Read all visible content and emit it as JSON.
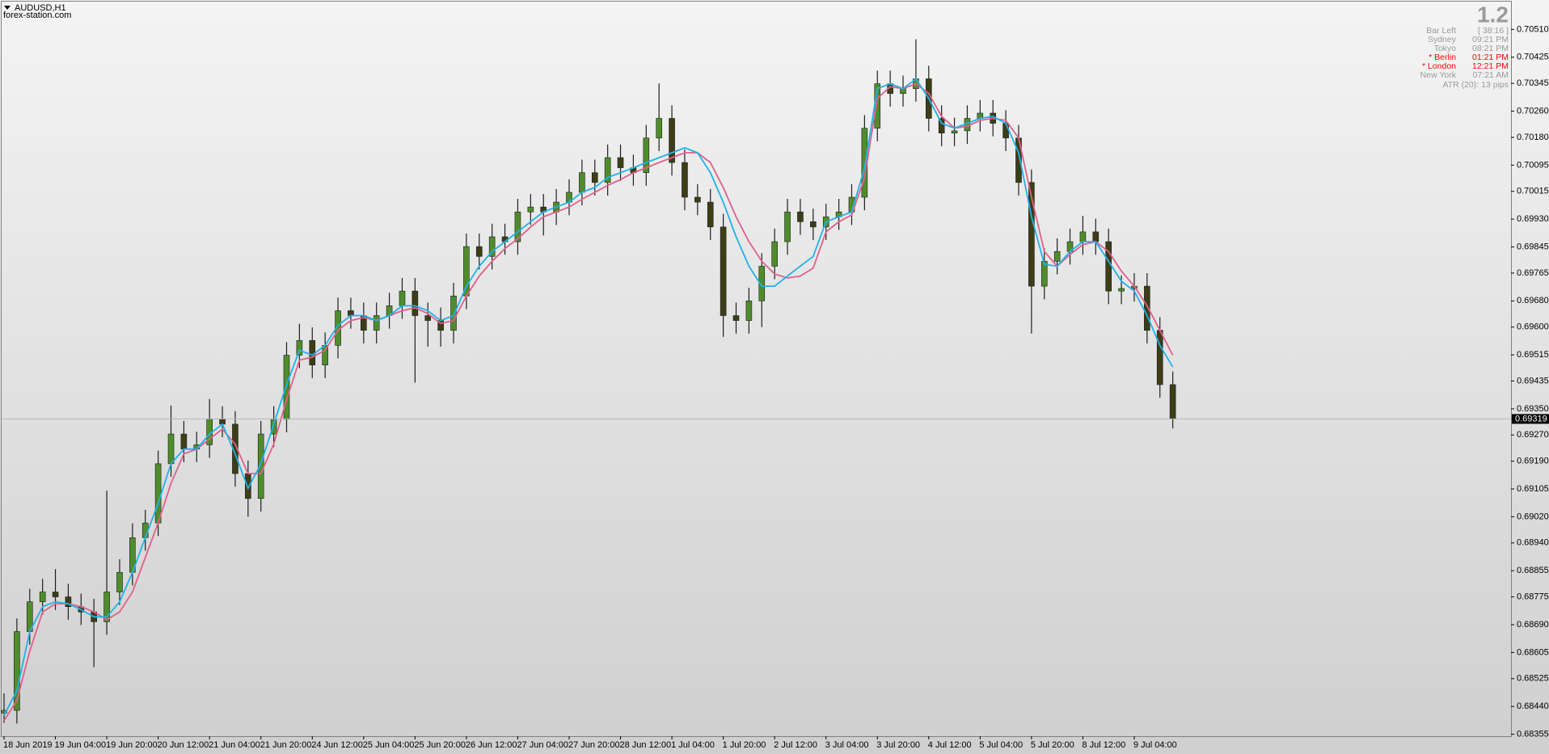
{
  "chart_data": {
    "type": "candlestick",
    "title": "AUDUSD,H1",
    "subtitle": "forex-station.com",
    "categories": [
      "18 Jun 2019",
      null,
      null,
      null,
      "19 Jun 04:00",
      null,
      null,
      null,
      "19 Jun 20:00",
      null,
      null,
      null,
      "20 Jun 12:00",
      null,
      null,
      null,
      "21 Jun 04:00",
      null,
      null,
      null,
      "21 Jun 20:00",
      null,
      null,
      null,
      "24 Jun 12:00",
      null,
      null,
      null,
      "25 Jun 04:00",
      null,
      null,
      null,
      "25 Jun 20:00",
      null,
      null,
      null,
      "26 Jun 12:00",
      null,
      null,
      null,
      "27 Jun 04:00",
      null,
      null,
      null,
      "27 Jun 20:00",
      null,
      null,
      null,
      "28 Jun 12:00",
      null,
      null,
      null,
      "1 Jul 04:00",
      null,
      null,
      null,
      "1 Jul 20:00",
      null,
      null,
      null,
      "2 Jul 12:00",
      null,
      null,
      null,
      "3 Jul 04:00",
      null,
      null,
      null,
      "3 Jul 20:00",
      null,
      null,
      null,
      "4 Jul 12:00",
      null,
      null,
      null,
      "5 Jul 04:00",
      null,
      null,
      null,
      "5 Jul 20:00",
      null,
      null,
      null,
      "8 Jul 12:00",
      null,
      null,
      null,
      "9 Jul 04:00",
      null,
      null,
      null
    ],
    "open": [
      0.6842,
      0.68428,
      0.68669,
      0.6876,
      0.6879,
      0.68775,
      0.68745,
      0.68729,
      0.68699,
      0.6879,
      0.6885,
      0.68956,
      0.69001,
      0.69182,
      0.69273,
      0.69227,
      0.6924,
      0.69318,
      0.69303,
      0.69152,
      0.69076,
      0.69273,
      0.69318,
      0.69514,
      0.69559,
      0.69484,
      0.69544,
      0.6965,
      0.69635,
      0.6959,
      0.69635,
      0.69665,
      0.6971,
      0.69635,
      0.6962,
      0.6959,
      0.69695,
      0.69846,
      0.69816,
      0.69876,
      0.69861,
      0.69952,
      0.69967,
      0.69952,
      0.69982,
      0.70012,
      0.70072,
      0.70042,
      0.70118,
      0.70087,
      0.70072,
      0.70178,
      0.70238,
      0.70103,
      0.69997,
      0.69982,
      0.69906,
      0.69635,
      0.6962,
      0.6968,
      0.69786,
      0.69861,
      0.69952,
      0.69922,
      0.69906,
      0.69937,
      0.69952,
      0.69997,
      0.70208,
      0.70344,
      0.70314,
      0.70329,
      0.70359,
      0.70238,
      0.70193,
      0.702,
      0.70238,
      0.70254,
      0.70223,
      0.70178,
      0.70042,
      0.69725,
      0.69801,
      0.69831,
      0.69861,
      0.69891,
      0.69861,
      0.6971,
      0.69718,
      0.69725,
      0.6959,
      0.69424
    ],
    "high": [
      0.6848,
      0.68709,
      0.688,
      0.6883,
      0.6886,
      0.68815,
      0.68785,
      0.68769,
      0.691,
      0.6889,
      0.69,
      0.69041,
      0.69222,
      0.6936,
      0.69313,
      0.6928,
      0.6938,
      0.69358,
      0.69343,
      0.69192,
      0.69313,
      0.69358,
      0.69554,
      0.6961,
      0.69599,
      0.69584,
      0.6969,
      0.6969,
      0.69675,
      0.69675,
      0.69705,
      0.6975,
      0.6975,
      0.69675,
      0.6966,
      0.69735,
      0.69886,
      0.69886,
      0.69916,
      0.69916,
      0.69992,
      0.70007,
      0.70007,
      0.70022,
      0.70052,
      0.70112,
      0.70112,
      0.70158,
      0.70158,
      0.70127,
      0.70218,
      0.70345,
      0.70278,
      0.70143,
      0.70037,
      0.70022,
      0.69946,
      0.69675,
      0.6972,
      0.69826,
      0.69901,
      0.69992,
      0.69992,
      0.69962,
      0.69977,
      0.69992,
      0.70037,
      0.70248,
      0.70384,
      0.70384,
      0.70369,
      0.7048,
      0.70399,
      0.70278,
      0.7024,
      0.70278,
      0.70294,
      0.70294,
      0.70263,
      0.70218,
      0.70082,
      0.69841,
      0.69871,
      0.69901,
      0.6994,
      0.69931,
      0.69901,
      0.69758,
      0.69765,
      0.69765,
      0.6963,
      0.69464
    ],
    "low": [
      0.6839,
      0.68388,
      0.68629,
      0.6872,
      0.68735,
      0.68705,
      0.68689,
      0.6856,
      0.68659,
      0.6875,
      0.6881,
      0.68916,
      0.68961,
      0.69142,
      0.69187,
      0.69187,
      0.692,
      0.69263,
      0.69112,
      0.6902,
      0.69036,
      0.69233,
      0.69278,
      0.69474,
      0.69444,
      0.69444,
      0.69504,
      0.69595,
      0.6955,
      0.6955,
      0.69595,
      0.69625,
      0.6943,
      0.6954,
      0.6954,
      0.6955,
      0.69655,
      0.69776,
      0.69776,
      0.69821,
      0.69821,
      0.69912,
      0.6988,
      0.69912,
      0.69942,
      0.69972,
      0.70002,
      0.70002,
      0.70047,
      0.70032,
      0.70032,
      0.70138,
      0.70063,
      0.69957,
      0.69942,
      0.69866,
      0.6957,
      0.6958,
      0.6958,
      0.696,
      0.69746,
      0.69821,
      0.69882,
      0.69866,
      0.69866,
      0.69897,
      0.69912,
      0.69957,
      0.70168,
      0.70274,
      0.70274,
      0.70289,
      0.70198,
      0.70153,
      0.70153,
      0.7016,
      0.70198,
      0.70183,
      0.70138,
      0.70002,
      0.6958,
      0.69685,
      0.69761,
      0.69791,
      0.69821,
      0.69821,
      0.6967,
      0.6967,
      0.69678,
      0.6955,
      0.69384,
      0.6929
    ],
    "close": [
      0.68428,
      0.68669,
      0.6876,
      0.6879,
      0.68775,
      0.68745,
      0.68729,
      0.68699,
      0.6879,
      0.6885,
      0.68956,
      0.69001,
      0.69182,
      0.69273,
      0.69227,
      0.6924,
      0.69318,
      0.69303,
      0.69152,
      0.69076,
      0.69273,
      0.69318,
      0.69514,
      0.69559,
      0.69484,
      0.69544,
      0.6965,
      0.69635,
      0.6959,
      0.69635,
      0.69665,
      0.6971,
      0.69635,
      0.6962,
      0.6959,
      0.69695,
      0.69846,
      0.69816,
      0.69876,
      0.69861,
      0.69952,
      0.69967,
      0.69952,
      0.69982,
      0.70012,
      0.70072,
      0.70042,
      0.70118,
      0.70087,
      0.70072,
      0.70178,
      0.70238,
      0.70103,
      0.69997,
      0.69982,
      0.69906,
      0.69635,
      0.6962,
      0.6968,
      0.69786,
      0.69861,
      0.69952,
      0.69922,
      0.69906,
      0.69937,
      0.69952,
      0.69997,
      0.70208,
      0.70344,
      0.70314,
      0.70329,
      0.70359,
      0.70238,
      0.70193,
      0.702,
      0.70238,
      0.70254,
      0.70223,
      0.70178,
      0.70042,
      0.69725,
      0.69801,
      0.69831,
      0.69861,
      0.69891,
      0.69861,
      0.6971,
      0.69718,
      0.69725,
      0.6959,
      0.69424,
      0.69319
    ],
    "up_color": "#4f8d2b",
    "down_color": "#3d3d17",
    "wick_color": "#1e1e1e",
    "lines": [
      {
        "color": "#e0608a",
        "values": [
          0.68397,
          0.68458,
          0.68609,
          0.68729,
          0.68754,
          0.68754,
          0.68745,
          0.68729,
          0.68705,
          0.68729,
          0.6879,
          0.68895,
          0.69001,
          0.69122,
          0.69212,
          0.69227,
          0.69258,
          0.69288,
          0.69242,
          0.69152,
          0.69152,
          0.69242,
          0.69378,
          0.69499,
          0.69508,
          0.69529,
          0.6959,
          0.6962,
          0.69629,
          0.6962,
          0.69635,
          0.6965,
          0.69659,
          0.69641,
          0.69611,
          0.6962,
          0.69695,
          0.69756,
          0.69801,
          0.6984,
          0.6987,
          0.69906,
          0.69937,
          0.69952,
          0.69967,
          0.69991,
          0.70012,
          0.70033,
          0.70051,
          0.70072,
          0.70087,
          0.70103,
          0.70118,
          0.70133,
          0.70133,
          0.70103,
          0.70027,
          0.69937,
          0.69861,
          0.69801,
          0.69762,
          0.6975,
          0.69756,
          0.6978,
          0.69891,
          0.69922,
          0.69943,
          0.70057,
          0.70299,
          0.70335,
          0.70329,
          0.70344,
          0.70314,
          0.70244,
          0.70208,
          0.70214,
          0.70232,
          0.70238,
          0.70232,
          0.70178,
          0.69997,
          0.69831,
          0.69786,
          0.69822,
          0.69852,
          0.69861,
          0.69831,
          0.69771,
          0.69725,
          0.69665,
          0.6959,
          0.69514
        ]
      },
      {
        "color": "#1fb2ea",
        "values": [
          0.68413,
          0.68488,
          0.68669,
          0.68745,
          0.6876,
          0.68754,
          0.68736,
          0.68714,
          0.68714,
          0.6876,
          0.6885,
          0.68956,
          0.69061,
          0.69182,
          0.69227,
          0.69227,
          0.69273,
          0.69303,
          0.69212,
          0.69107,
          0.69182,
          0.69303,
          0.69424,
          0.69529,
          0.69514,
          0.69544,
          0.69605,
          0.69635,
          0.69635,
          0.6962,
          0.69635,
          0.69665,
          0.69665,
          0.6965,
          0.6962,
          0.69635,
          0.69725,
          0.69786,
          0.69831,
          0.69861,
          0.69891,
          0.69922,
          0.69952,
          0.69967,
          0.69982,
          0.70012,
          0.70027,
          0.70057,
          0.70072,
          0.70087,
          0.70103,
          0.70118,
          0.70133,
          0.70148,
          0.70133,
          0.70072,
          0.69982,
          0.69876,
          0.69786,
          0.69725,
          0.69725,
          0.69756,
          0.69786,
          0.69816,
          0.69922,
          0.69937,
          0.69952,
          0.70087,
          0.70329,
          0.70344,
          0.70329,
          0.70359,
          0.70299,
          0.70223,
          0.70208,
          0.70223,
          0.70238,
          0.70244,
          0.70223,
          0.70133,
          0.69937,
          0.69792,
          0.69786,
          0.69831,
          0.69861,
          0.69861,
          0.69801,
          0.6974,
          0.6971,
          0.69635,
          0.69544,
          0.69478
        ]
      }
    ],
    "ylim": [
      0.68349,
      0.70595
    ],
    "yticks": [
      {
        "value": 0.7051,
        "label": "0.70510"
      },
      {
        "value": 0.70425,
        "label": "0.70425"
      },
      {
        "value": 0.70345,
        "label": "0.70345"
      },
      {
        "value": 0.7026,
        "label": "0.70260"
      },
      {
        "value": 0.7018,
        "label": "0.70180"
      },
      {
        "value": 0.70095,
        "label": "0.70095"
      },
      {
        "value": 0.70015,
        "label": "0.70015"
      },
      {
        "value": 0.6993,
        "label": "0.69930"
      },
      {
        "value": 0.69845,
        "label": "0.69845"
      },
      {
        "value": 0.69765,
        "label": "0.69765"
      },
      {
        "value": 0.6968,
        "label": "0.69680"
      },
      {
        "value": 0.696,
        "label": "0.69600"
      },
      {
        "value": 0.69515,
        "label": "0.69515"
      },
      {
        "value": 0.69435,
        "label": "0.69435"
      },
      {
        "value": 0.6935,
        "label": "0.69350"
      },
      {
        "value": 0.6927,
        "label": "0.69270"
      },
      {
        "value": 0.6919,
        "label": "0.69190"
      },
      {
        "value": 0.69105,
        "label": "0.69105"
      },
      {
        "value": 0.6902,
        "label": "0.69020"
      },
      {
        "value": 0.6894,
        "label": "0.68940"
      },
      {
        "value": 0.68855,
        "label": "0.68855"
      },
      {
        "value": 0.68775,
        "label": "0.68775"
      },
      {
        "value": 0.6869,
        "label": "0.68690"
      },
      {
        "value": 0.68605,
        "label": "0.68605"
      },
      {
        "value": 0.68525,
        "label": "0.68525"
      },
      {
        "value": 0.6844,
        "label": "0.68440"
      },
      {
        "value": 0.68355,
        "label": "0.68355"
      }
    ],
    "current_price": {
      "value": 0.69319,
      "label": "0.69319"
    },
    "grid": false
  },
  "info_panel": {
    "version": "1.2",
    "rows": [
      {
        "label": "Bar Left",
        "value": "[ 38:16 ]",
        "color": "#9a9a9a"
      },
      {
        "label": "Sydney",
        "value": "09:21 PM",
        "color": "#9a9a9a"
      },
      {
        "label": "Tokyo",
        "value": "08:21 PM",
        "color": "#9a9a9a"
      },
      {
        "label": "* Berlin",
        "value": "01:21 PM",
        "color": "#ff0000"
      },
      {
        "label": "* London",
        "value": "12:21 PM",
        "color": "#ff0000"
      },
      {
        "label": "New York",
        "value": "07:21 AM",
        "color": "#9a9a9a"
      }
    ],
    "atr": "ATR (20): 13 pips"
  }
}
